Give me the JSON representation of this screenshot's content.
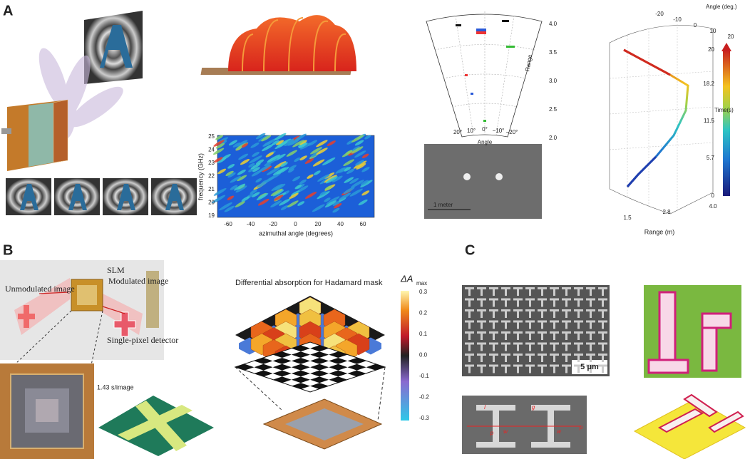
{
  "panels": {
    "a": {
      "label": "A",
      "heatmap": {
        "ylabel": "frequency (GHz)",
        "yticks": [
          "25",
          "24",
          "23",
          "22",
          "21",
          "20",
          "19"
        ],
        "xlabel": "azimuthal angle (degrees)",
        "xticks": [
          "-60",
          "-40",
          "-20",
          "0",
          "20",
          "40",
          "60"
        ]
      },
      "polar": {
        "range_label": "Range",
        "range_ticks": [
          "4.0",
          "3.5",
          "3.0",
          "2.5",
          "2.0"
        ],
        "angle_label": "Angle",
        "angle_ticks": [
          "20°",
          "10°",
          "0°",
          "−10°",
          "−20°"
        ]
      },
      "photo": {
        "scale": "1 meter"
      },
      "plot3d": {
        "angle_label": "Angle (deg.)",
        "angle_ticks": [
          "-20",
          "-10",
          "0",
          "10",
          "20"
        ],
        "range_label": "Range (m)",
        "range_ticks": [
          "1.5",
          "2.8",
          "4.0"
        ],
        "time_label": "Time(s)",
        "time_ticks": [
          "20",
          "18.2",
          "11.5",
          "5.7",
          "0"
        ]
      }
    },
    "b": {
      "label": "B",
      "diagram": {
        "unmodulated": "Unmodulated image",
        "slm": "SLM",
        "modulated": "Modulated image",
        "detector": "Single-pixel detector"
      },
      "rate": "1.43 s/image",
      "hadamard": {
        "title": "Differential absorption for Hadamard mask",
        "cbar_label": "ΔA",
        "cbar_sub": "max",
        "cbar_ticks": [
          "0.3",
          "0.2",
          "0.1",
          "0.0",
          "-0.1",
          "-0.2",
          "-0.3"
        ]
      }
    },
    "c": {
      "label": "C",
      "scale": "5 μm",
      "dims": [
        "g",
        "l",
        "w",
        "w",
        "p",
        "p"
      ]
    }
  }
}
